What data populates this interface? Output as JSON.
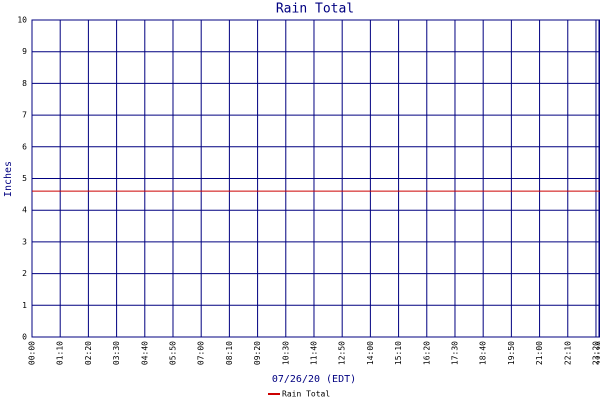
{
  "chart_data": {
    "type": "line",
    "title": "Rain Total",
    "y_label": "Inches",
    "x_label": "07/26/20 (EDT)",
    "x": [
      0,
      1410
    ],
    "series": [
      {
        "name": "Rain Total",
        "color": "#cc0000",
        "values": [
          4.6,
          4.6
        ]
      }
    ],
    "xlim": [
      0,
      1410
    ],
    "xticks": [
      {
        "value": 0,
        "label": "00:00"
      },
      {
        "value": 70,
        "label": "01:10"
      },
      {
        "value": 140,
        "label": "02:20"
      },
      {
        "value": 210,
        "label": "03:30"
      },
      {
        "value": 280,
        "label": "04:40"
      },
      {
        "value": 350,
        "label": "05:50"
      },
      {
        "value": 420,
        "label": "07:00"
      },
      {
        "value": 490,
        "label": "08:10"
      },
      {
        "value": 560,
        "label": "09:20"
      },
      {
        "value": 630,
        "label": "10:30"
      },
      {
        "value": 700,
        "label": "11:40"
      },
      {
        "value": 770,
        "label": "12:50"
      },
      {
        "value": 840,
        "label": "14:00"
      },
      {
        "value": 910,
        "label": "15:10"
      },
      {
        "value": 980,
        "label": "16:20"
      },
      {
        "value": 1050,
        "label": "17:30"
      },
      {
        "value": 1120,
        "label": "18:40"
      },
      {
        "value": 1190,
        "label": "19:50"
      },
      {
        "value": 1260,
        "label": "21:00"
      },
      {
        "value": 1330,
        "label": "22:10"
      },
      {
        "value": 1400,
        "label": "23:20"
      },
      {
        "value": 1410,
        "label": "23:30"
      }
    ],
    "ylim": [
      0,
      10
    ],
    "yticks": [
      0,
      1,
      2,
      3,
      4,
      5,
      6,
      7,
      8,
      9,
      10
    ],
    "grid": true,
    "grid_color": "#000080"
  }
}
